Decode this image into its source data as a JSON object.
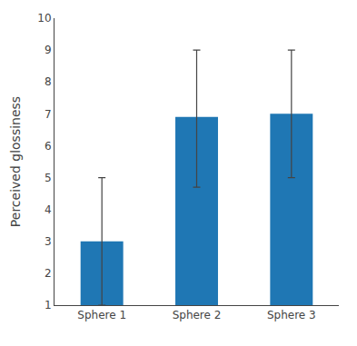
{
  "chart_data": {
    "type": "bar",
    "ylabel": "Perceived glossiness",
    "categories": [
      "Sphere 1",
      "Sphere 2",
      "Sphere 3"
    ],
    "values": [
      3.0,
      6.9,
      7.0
    ],
    "errors_upper": [
      2.0,
      2.1,
      2.0
    ],
    "errors_lower": [
      2.0,
      2.2,
      2.0
    ],
    "ylim": [
      1,
      10
    ],
    "yticks": [
      1,
      2,
      3,
      4,
      5,
      6,
      7,
      8,
      9,
      10
    ],
    "grid": false
  }
}
